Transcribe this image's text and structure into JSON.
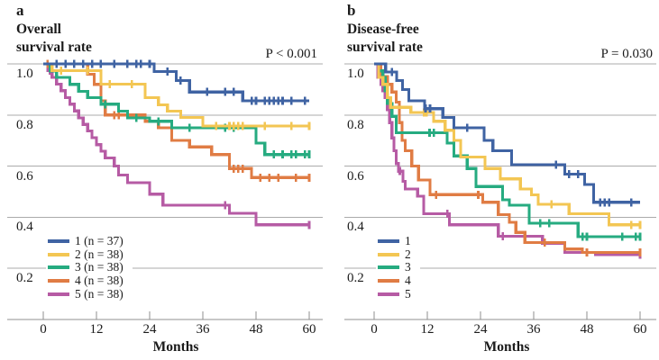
{
  "figure": {
    "background": "#ffffff",
    "text_color": "#1b1b1b",
    "gridline_color": "#ababab",
    "axis_color": "#8f8f8f",
    "group_colors": {
      "1": "#3f63a3",
      "2": "#f3c653",
      "3": "#26ab80",
      "4": "#e07c44",
      "5": "#b65ba4"
    }
  },
  "chart_data": [
    {
      "id": "a",
      "type": "line",
      "subtype": "kaplan-meier-step",
      "panel_label": "a",
      "title_lines": [
        "Overall",
        "survival rate"
      ],
      "p_label": "P < 0.001",
      "xlabel": "Months",
      "x_ticks": [
        0,
        12,
        24,
        36,
        48,
        60
      ],
      "x_range": [
        0,
        60
      ],
      "y_range": [
        0,
        1.05
      ],
      "y_grid_values": [
        1.0,
        0.8,
        0.6,
        0.4,
        0.2
      ],
      "y_tick_labels": [
        "1.0",
        "0.8",
        "0.6",
        "0.4",
        "0.2"
      ],
      "grid": "horizontal",
      "legend_position": "lower-left-inside",
      "series": [
        {
          "name": "1",
          "legend_label": "1 (n = 37)",
          "color": "#3f63a3",
          "steps": [
            [
              0,
              1.0
            ],
            [
              25,
              0.97
            ],
            [
              30,
              0.935
            ],
            [
              33,
              0.89
            ],
            [
              45,
              0.855
            ]
          ],
          "censor_months": [
            3,
            5,
            7,
            9,
            11,
            13,
            16,
            19,
            21,
            22,
            24,
            28,
            31,
            37,
            41,
            43,
            47,
            48,
            50,
            51,
            52,
            53,
            54,
            56,
            59
          ]
        },
        {
          "name": "2",
          "legend_label": "2 (n = 38)",
          "color": "#f3c653",
          "steps": [
            [
              0,
              1.0
            ],
            [
              2,
              0.974
            ],
            [
              13,
              0.921
            ],
            [
              23,
              0.868
            ],
            [
              26,
              0.84
            ],
            [
              28,
              0.815
            ],
            [
              31,
              0.79
            ],
            [
              36,
              0.757
            ]
          ],
          "censor_months": [
            4,
            10,
            15,
            20,
            39,
            42,
            43,
            44,
            45,
            50,
            56,
            60
          ]
        },
        {
          "name": "3",
          "legend_label": "3 (n = 38)",
          "color": "#26ab80",
          "steps": [
            [
              0,
              1.0
            ],
            [
              1.5,
              0.973
            ],
            [
              3,
              0.947
            ],
            [
              6,
              0.92
            ],
            [
              8,
              0.893
            ],
            [
              10,
              0.868
            ],
            [
              13,
              0.842
            ],
            [
              17,
              0.815
            ],
            [
              19,
              0.789
            ],
            [
              24,
              0.775
            ],
            [
              29,
              0.75
            ],
            [
              48,
              0.69
            ],
            [
              50,
              0.645
            ]
          ],
          "censor_months": [
            14,
            21,
            26,
            33,
            41,
            43,
            52,
            54,
            56,
            57,
            59,
            60
          ]
        },
        {
          "name": "4",
          "legend_label": "4 (n = 38)",
          "color": "#e07c44",
          "steps": [
            [
              0,
              1.0
            ],
            [
              10,
              0.96
            ],
            [
              11.5,
              0.92
            ],
            [
              13,
              0.855
            ],
            [
              14,
              0.8
            ],
            [
              23,
              0.775
            ],
            [
              26,
              0.75
            ],
            [
              29,
              0.7
            ],
            [
              33,
              0.675
            ],
            [
              38,
              0.645
            ],
            [
              42,
              0.59
            ],
            [
              47,
              0.555
            ]
          ],
          "censor_months": [
            1,
            16,
            17,
            43,
            44,
            45,
            49,
            51,
            53,
            57,
            60
          ]
        },
        {
          "name": "5",
          "legend_label": "5 (n = 38)",
          "color": "#b65ba4",
          "steps": [
            [
              0,
              1.0
            ],
            [
              1,
              0.974
            ],
            [
              2,
              0.947
            ],
            [
              3,
              0.921
            ],
            [
              4,
              0.895
            ],
            [
              5,
              0.868
            ],
            [
              6,
              0.842
            ],
            [
              7,
              0.816
            ],
            [
              8,
              0.789
            ],
            [
              9,
              0.763
            ],
            [
              10,
              0.737
            ],
            [
              11,
              0.711
            ],
            [
              12,
              0.684
            ],
            [
              13,
              0.658
            ],
            [
              14,
              0.632
            ],
            [
              16,
              0.6
            ],
            [
              17,
              0.565
            ],
            [
              19,
              0.535
            ],
            [
              24,
              0.49
            ],
            [
              27,
              0.447
            ],
            [
              42,
              0.415
            ],
            [
              48,
              0.37
            ]
          ],
          "censor_months": [
            1.5,
            41,
            60
          ]
        }
      ]
    },
    {
      "id": "b",
      "type": "line",
      "subtype": "kaplan-meier-step",
      "panel_label": "b",
      "title_lines": [
        "Disease-free",
        "survival rate"
      ],
      "p_label": "P = 0.030",
      "xlabel": "Months",
      "x_ticks": [
        0,
        12,
        24,
        36,
        48,
        60
      ],
      "x_range": [
        0,
        60
      ],
      "y_range": [
        0,
        1.05
      ],
      "y_grid_values": [
        1.0,
        0.8,
        0.6,
        0.4,
        0.2
      ],
      "y_tick_labels": [
        "1.0",
        "0.8",
        "0.6",
        "0.4",
        "0.2"
      ],
      "grid": "horizontal",
      "legend_position": "lower-left-inside",
      "series": [
        {
          "name": "1",
          "legend_label": "1",
          "color": "#3f63a3",
          "steps": [
            [
              0,
              1.0
            ],
            [
              2.6,
              0.968
            ],
            [
              5.1,
              0.935
            ],
            [
              6.4,
              0.9
            ],
            [
              7.8,
              0.855
            ],
            [
              11.4,
              0.825
            ],
            [
              15.5,
              0.79
            ],
            [
              18,
              0.75
            ],
            [
              24.8,
              0.7
            ],
            [
              26.8,
              0.66
            ],
            [
              31,
              0.605
            ],
            [
              43,
              0.568
            ],
            [
              47.5,
              0.528
            ],
            [
              49.5,
              0.458
            ]
          ],
          "censor_months": [
            4,
            11.6,
            12.6,
            21,
            41,
            44,
            46,
            51,
            52,
            53,
            58
          ]
        },
        {
          "name": "2",
          "legend_label": "2",
          "color": "#f3c653",
          "steps": [
            [
              0,
              1.0
            ],
            [
              1,
              0.947
            ],
            [
              2,
              0.92
            ],
            [
              3,
              0.868
            ],
            [
              3.7,
              0.83
            ],
            [
              8.3,
              0.81
            ],
            [
              13.4,
              0.775
            ],
            [
              16,
              0.74
            ],
            [
              18,
              0.7
            ],
            [
              19.5,
              0.635
            ],
            [
              25,
              0.59
            ],
            [
              28.5,
              0.55
            ],
            [
              33,
              0.51
            ],
            [
              35.5,
              0.487
            ],
            [
              37,
              0.45
            ],
            [
              44,
              0.413
            ],
            [
              53,
              0.37
            ]
          ],
          "censor_months": [
            11.2,
            11.8,
            40,
            58,
            60
          ]
        },
        {
          "name": "3",
          "legend_label": "3",
          "color": "#26ab80",
          "steps": [
            [
              0,
              1.0
            ],
            [
              1,
              0.973
            ],
            [
              2,
              0.947
            ],
            [
              2.5,
              0.895
            ],
            [
              3,
              0.845
            ],
            [
              4,
              0.795
            ],
            [
              5,
              0.73
            ],
            [
              16.5,
              0.69
            ],
            [
              18,
              0.64
            ],
            [
              21,
              0.59
            ],
            [
              23,
              0.52
            ],
            [
              29,
              0.468
            ],
            [
              30.5,
              0.447
            ],
            [
              35,
              0.376
            ],
            [
              46,
              0.323
            ]
          ],
          "censor_months": [
            12.5,
            13.5,
            37.5,
            39.5,
            47,
            48,
            56,
            59,
            60
          ]
        },
        {
          "name": "4",
          "legend_label": "4",
          "color": "#e07c44",
          "steps": [
            [
              0,
              1.0
            ],
            [
              1.5,
              0.95
            ],
            [
              3,
              0.92
            ],
            [
              4,
              0.89
            ],
            [
              5,
              0.85
            ],
            [
              5.7,
              0.77
            ],
            [
              6.3,
              0.7
            ],
            [
              7,
              0.66
            ],
            [
              8.5,
              0.6
            ],
            [
              10,
              0.545
            ],
            [
              12.6,
              0.488
            ],
            [
              24.5,
              0.458
            ],
            [
              28,
              0.41
            ],
            [
              30.5,
              0.38
            ],
            [
              32,
              0.34
            ],
            [
              34,
              0.3
            ],
            [
              43,
              0.275
            ],
            [
              47,
              0.262
            ]
          ],
          "censor_months": [
            14,
            23.5,
            38.5,
            48,
            60
          ]
        },
        {
          "name": "5",
          "legend_label": "5",
          "color": "#b65ba4",
          "steps": [
            [
              0,
              1.0
            ],
            [
              0.8,
              0.947
            ],
            [
              1.5,
              0.92
            ],
            [
              2,
              0.895
            ],
            [
              2.5,
              0.868
            ],
            [
              3,
              0.82
            ],
            [
              3.5,
              0.77
            ],
            [
              4,
              0.71
            ],
            [
              4.5,
              0.66
            ],
            [
              5,
              0.61
            ],
            [
              5.5,
              0.58
            ],
            [
              6.5,
              0.54
            ],
            [
              7,
              0.51
            ],
            [
              9.8,
              0.482
            ],
            [
              11.2,
              0.413
            ],
            [
              17,
              0.37
            ],
            [
              28,
              0.325
            ],
            [
              38,
              0.298
            ],
            [
              43,
              0.262
            ],
            [
              50,
              0.253
            ]
          ],
          "censor_months": [
            5.8,
            16.5,
            29,
            60
          ]
        }
      ]
    }
  ]
}
